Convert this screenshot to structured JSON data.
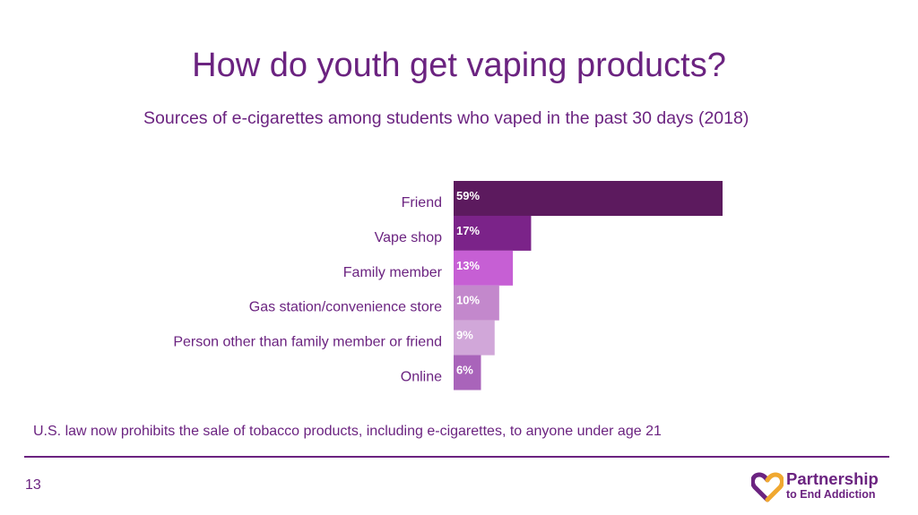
{
  "slide": {
    "title": "How do youth get vaping products?",
    "subtitle": "Sources of e-cigarettes among students who vaped in the past 30 days (2018)",
    "footnote": "U.S. law now prohibits the sale of tobacco products, including e-cigarettes, to anyone under age 21",
    "page_number": "13",
    "colors": {
      "accent": "#6b2380",
      "rule": "#6b2380"
    }
  },
  "logo": {
    "line1": "Partnership",
    "line2": "to End Addiction",
    "icon": "heart-icon",
    "colors": {
      "heart_left": "#6b2380",
      "heart_right": "#f0a830"
    }
  },
  "chart_data": {
    "type": "bar",
    "orientation": "horizontal",
    "categories": [
      "Friend",
      "Vape shop",
      "Family member",
      "Gas station/convenience store",
      "Person other than family member or friend",
      "Online"
    ],
    "values": [
      59,
      17,
      13,
      10,
      9,
      6
    ],
    "value_labels": [
      "59%",
      "17%",
      "13%",
      "10%",
      "9%",
      "6%"
    ],
    "unit": "%",
    "xlim": [
      0,
      59
    ],
    "grid": false,
    "legend": false,
    "bar_colors": [
      "#5c1a5e",
      "#7b2389",
      "#c65fd4",
      "#c388cc",
      "#d1a7d9",
      "#a964ba"
    ],
    "label_color": "#6b2380",
    "value_label_color": "#ffffff"
  }
}
